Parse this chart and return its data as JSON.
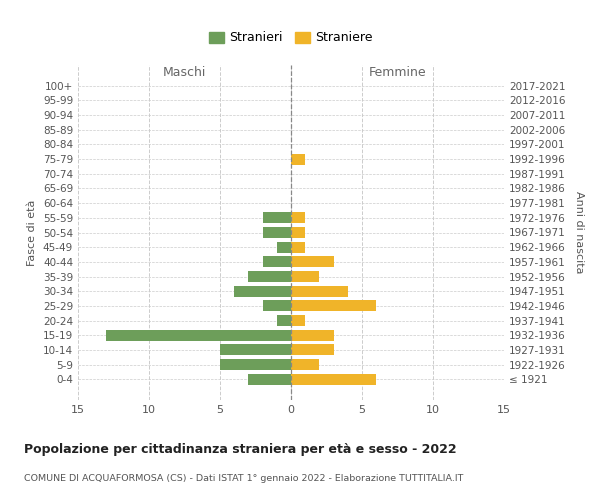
{
  "age_groups": [
    "100+",
    "95-99",
    "90-94",
    "85-89",
    "80-84",
    "75-79",
    "70-74",
    "65-69",
    "60-64",
    "55-59",
    "50-54",
    "45-49",
    "40-44",
    "35-39",
    "30-34",
    "25-29",
    "20-24",
    "15-19",
    "10-14",
    "5-9",
    "0-4"
  ],
  "birth_years": [
    "≤ 1921",
    "1922-1926",
    "1927-1931",
    "1932-1936",
    "1937-1941",
    "1942-1946",
    "1947-1951",
    "1952-1956",
    "1957-1961",
    "1962-1966",
    "1967-1971",
    "1972-1976",
    "1977-1981",
    "1982-1986",
    "1987-1991",
    "1992-1996",
    "1997-2001",
    "2002-2006",
    "2007-2011",
    "2012-2016",
    "2017-2021"
  ],
  "maschi": [
    0,
    0,
    0,
    0,
    0,
    0,
    0,
    0,
    0,
    2,
    2,
    1,
    2,
    3,
    4,
    2,
    1,
    13,
    5,
    5,
    3
  ],
  "femmine": [
    0,
    0,
    0,
    0,
    0,
    1,
    0,
    0,
    0,
    1,
    1,
    1,
    3,
    2,
    4,
    6,
    1,
    3,
    3,
    2,
    6
  ],
  "color_maschi": "#6d9e5a",
  "color_femmine": "#f0b429",
  "background_color": "#ffffff",
  "grid_color": "#cccccc",
  "title": "Popolazione per cittadinanza straniera per età e sesso - 2022",
  "subtitle": "COMUNE DI ACQUAFORMOSA (CS) - Dati ISTAT 1° gennaio 2022 - Elaborazione TUTTITALIA.IT",
  "ylabel_left": "Fasce di età",
  "ylabel_right": "Anni di nascita",
  "label_maschi": "Maschi",
  "label_femmine": "Femmine",
  "legend_maschi": "Stranieri",
  "legend_femmine": "Straniere",
  "xlim": 15
}
